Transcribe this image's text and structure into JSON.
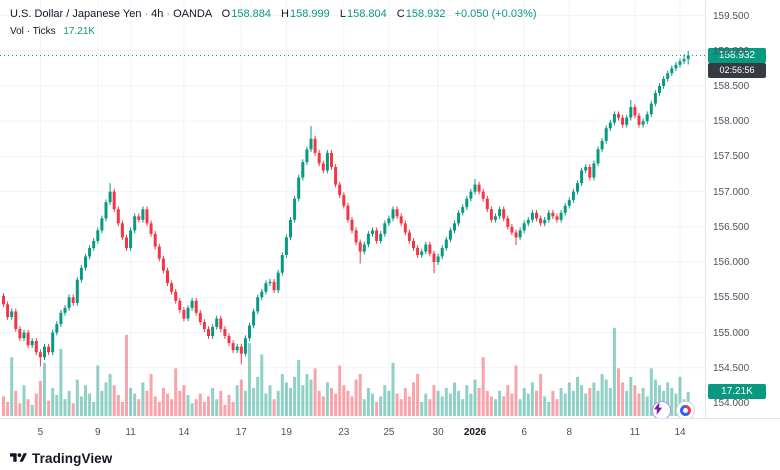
{
  "header": {
    "symbol": "U.S. Dollar / Japanese Yen",
    "sep": "·",
    "interval": "4h",
    "exchange": "OANDA",
    "ohlc": {
      "o_label": "O",
      "o_value": "158.884",
      "h_label": "H",
      "h_value": "158.999",
      "l_label": "L",
      "l_value": "158.804",
      "c_label": "C",
      "c_value": "158.932",
      "change": "+0.050 (+0.03%)"
    },
    "volume_row": {
      "label": "Vol · Ticks",
      "value": "17.21K"
    }
  },
  "price_axis": {
    "labels": [
      "159.500",
      "159.000",
      "158.500",
      "158.000",
      "157.500",
      "157.000",
      "156.500",
      "156.000",
      "155.500",
      "155.000",
      "154.500",
      "154.000"
    ]
  },
  "time_axis": {
    "labels": [
      {
        "text": "5",
        "index": 9
      },
      {
        "text": "9",
        "index": 23
      },
      {
        "text": "11",
        "index": 31
      },
      {
        "text": "14",
        "index": 44
      },
      {
        "text": "17",
        "index": 58
      },
      {
        "text": "19",
        "index": 69
      },
      {
        "text": "23",
        "index": 83
      },
      {
        "text": "25",
        "index": 94
      },
      {
        "text": "30",
        "index": 106
      },
      {
        "text": "2026",
        "index": 115,
        "year": true
      },
      {
        "text": "6",
        "index": 127
      },
      {
        "text": "8",
        "index": 138
      },
      {
        "text": "11",
        "index": 154
      },
      {
        "text": "14",
        "index": 165
      }
    ]
  },
  "badges": {
    "last_price": "158.932",
    "countdown": "02:56:56",
    "last_volume": "17.21K"
  },
  "footer": {
    "brand": "TradingView"
  },
  "icons": {
    "boost": "lightning-bolt",
    "secondary": "red-blue-gauge",
    "logo": "tradingview-logo"
  },
  "colors": {
    "up": "#089981",
    "down": "#f23645",
    "vol_up": "rgba(8,153,129,0.45)",
    "vol_down": "rgba(242,54,69,0.45)",
    "grid": "#f0f3fa",
    "axis_text": "#4c525e",
    "badge_price_bg": "#089981",
    "badge_countdown_bg": "#363a45"
  },
  "chart_data": {
    "type": "candlestick+volume",
    "symbol": "USD/JPY",
    "interval": "4h",
    "exchange": "OANDA",
    "title": "U.S. Dollar / Japanese Yen · 4h · OANDA",
    "price_range": [
      154.0,
      159.5
    ],
    "grid": true,
    "last": {
      "open": 158.884,
      "high": 158.999,
      "low": 158.804,
      "close": 158.932,
      "change": "+0.050 (+0.03%)",
      "volume_k": 17.21
    },
    "candles": [
      [
        155.52,
        155.56,
        155.36,
        155.4
      ],
      [
        155.4,
        155.44,
        155.18,
        155.22
      ],
      [
        155.22,
        155.34,
        155.18,
        155.3
      ],
      [
        155.3,
        155.34,
        155.01,
        155.05
      ],
      [
        155.05,
        155.09,
        154.88,
        154.92
      ],
      [
        154.92,
        155.04,
        154.88,
        155.0
      ],
      [
        155.0,
        155.04,
        154.78,
        154.82
      ],
      [
        154.82,
        154.92,
        154.78,
        154.88
      ],
      [
        154.88,
        154.92,
        154.68,
        154.72
      ],
      [
        154.72,
        154.76,
        154.52,
        154.65
      ],
      [
        154.65,
        154.84,
        154.61,
        154.8
      ],
      [
        154.8,
        154.84,
        154.68,
        154.72
      ],
      [
        154.72,
        155.04,
        154.68,
        155.0
      ],
      [
        155.0,
        155.16,
        154.96,
        155.12
      ],
      [
        155.12,
        155.32,
        155.08,
        155.28
      ],
      [
        155.28,
        155.39,
        155.24,
        155.35
      ],
      [
        155.35,
        155.54,
        155.31,
        155.5
      ],
      [
        155.5,
        155.54,
        155.38,
        155.42
      ],
      [
        155.42,
        155.79,
        155.38,
        155.75
      ],
      [
        155.75,
        155.96,
        155.71,
        155.92
      ],
      [
        155.92,
        156.12,
        155.88,
        156.08
      ],
      [
        156.08,
        156.24,
        156.04,
        156.2
      ],
      [
        156.2,
        156.34,
        156.16,
        156.3
      ],
      [
        156.3,
        156.49,
        156.26,
        156.45
      ],
      [
        156.45,
        156.66,
        156.41,
        156.62
      ],
      [
        156.62,
        156.89,
        156.58,
        156.85
      ],
      [
        156.85,
        157.12,
        156.81,
        157.0
      ],
      [
        157.0,
        157.04,
        156.71,
        156.75
      ],
      [
        156.75,
        156.79,
        156.51,
        156.55
      ],
      [
        156.55,
        156.59,
        156.31,
        156.35
      ],
      [
        156.35,
        156.39,
        156.16,
        156.2
      ],
      [
        156.2,
        156.49,
        156.16,
        156.45
      ],
      [
        156.45,
        156.69,
        156.41,
        156.65
      ],
      [
        156.65,
        156.69,
        156.56,
        156.6
      ],
      [
        156.6,
        156.79,
        156.56,
        156.75
      ],
      [
        156.75,
        156.79,
        156.51,
        156.55
      ],
      [
        156.55,
        156.59,
        156.36,
        156.4
      ],
      [
        156.4,
        156.44,
        156.18,
        156.22
      ],
      [
        156.22,
        156.26,
        156.01,
        156.05
      ],
      [
        156.05,
        156.09,
        155.84,
        155.88
      ],
      [
        155.88,
        155.92,
        155.66,
        155.7
      ],
      [
        155.7,
        155.74,
        155.54,
        155.58
      ],
      [
        155.58,
        155.62,
        155.41,
        155.45
      ],
      [
        155.45,
        155.49,
        155.28,
        155.32
      ],
      [
        155.32,
        155.36,
        155.16,
        155.2
      ],
      [
        155.2,
        155.39,
        155.16,
        155.35
      ],
      [
        155.35,
        155.49,
        155.31,
        155.45
      ],
      [
        155.45,
        155.49,
        155.24,
        155.28
      ],
      [
        155.28,
        155.32,
        155.11,
        155.15
      ],
      [
        155.15,
        155.19,
        155.01,
        155.05
      ],
      [
        155.05,
        155.09,
        154.91,
        154.95
      ],
      [
        154.95,
        155.12,
        154.91,
        155.08
      ],
      [
        155.08,
        155.24,
        155.04,
        155.2
      ],
      [
        155.2,
        155.24,
        155.01,
        155.05
      ],
      [
        155.05,
        155.09,
        154.91,
        154.95
      ],
      [
        154.95,
        154.99,
        154.81,
        154.85
      ],
      [
        154.85,
        154.89,
        154.71,
        154.75
      ],
      [
        154.75,
        154.84,
        154.71,
        154.8
      ],
      [
        154.8,
        154.84,
        154.55,
        154.7
      ],
      [
        154.7,
        154.96,
        154.66,
        154.92
      ],
      [
        154.92,
        155.14,
        154.88,
        155.1
      ],
      [
        155.1,
        155.34,
        155.06,
        155.3
      ],
      [
        155.3,
        155.54,
        155.26,
        155.5
      ],
      [
        155.5,
        155.62,
        155.46,
        155.58
      ],
      [
        155.58,
        155.74,
        155.54,
        155.7
      ],
      [
        155.7,
        155.76,
        155.66,
        155.72
      ],
      [
        155.72,
        155.76,
        155.56,
        155.6
      ],
      [
        155.6,
        155.89,
        155.56,
        155.85
      ],
      [
        155.85,
        156.14,
        155.81,
        156.1
      ],
      [
        156.1,
        156.39,
        156.06,
        156.35
      ],
      [
        156.35,
        156.64,
        156.31,
        156.6
      ],
      [
        156.6,
        156.94,
        156.56,
        156.9
      ],
      [
        156.9,
        157.24,
        156.86,
        157.2
      ],
      [
        157.2,
        157.46,
        157.16,
        157.42
      ],
      [
        157.42,
        157.64,
        157.38,
        157.6
      ],
      [
        157.6,
        157.93,
        157.56,
        157.75
      ],
      [
        157.75,
        157.79,
        157.51,
        157.55
      ],
      [
        157.55,
        157.59,
        157.36,
        157.4
      ],
      [
        157.4,
        157.44,
        157.26,
        157.3
      ],
      [
        157.3,
        157.59,
        157.26,
        157.55
      ],
      [
        157.55,
        157.59,
        157.31,
        157.35
      ],
      [
        157.35,
        157.39,
        157.06,
        157.1
      ],
      [
        157.1,
        157.14,
        156.91,
        156.95
      ],
      [
        156.95,
        156.99,
        156.76,
        156.8
      ],
      [
        156.8,
        156.84,
        156.56,
        156.6
      ],
      [
        156.6,
        156.64,
        156.41,
        156.45
      ],
      [
        156.45,
        156.49,
        156.24,
        156.28
      ],
      [
        156.28,
        156.32,
        155.98,
        156.15
      ],
      [
        156.15,
        156.29,
        156.11,
        156.25
      ],
      [
        156.25,
        156.44,
        156.21,
        156.4
      ],
      [
        156.4,
        156.49,
        156.36,
        156.45
      ],
      [
        156.45,
        156.49,
        156.26,
        156.3
      ],
      [
        156.3,
        156.44,
        156.26,
        156.4
      ],
      [
        156.4,
        156.59,
        156.36,
        156.55
      ],
      [
        156.55,
        156.66,
        156.51,
        156.62
      ],
      [
        156.62,
        156.79,
        156.58,
        156.75
      ],
      [
        156.75,
        156.79,
        156.61,
        156.65
      ],
      [
        156.65,
        156.69,
        156.51,
        156.55
      ],
      [
        156.55,
        156.59,
        156.38,
        156.42
      ],
      [
        156.42,
        156.46,
        156.26,
        156.3
      ],
      [
        156.3,
        156.34,
        156.16,
        156.2
      ],
      [
        156.2,
        156.24,
        156.06,
        156.1
      ],
      [
        156.1,
        156.19,
        156.06,
        156.15
      ],
      [
        156.15,
        156.29,
        156.11,
        156.25
      ],
      [
        156.25,
        156.29,
        156.08,
        156.12
      ],
      [
        156.12,
        156.16,
        155.84,
        156.0
      ],
      [
        156.0,
        156.12,
        155.96,
        156.08
      ],
      [
        156.08,
        156.24,
        156.04,
        156.2
      ],
      [
        156.2,
        156.36,
        156.16,
        156.32
      ],
      [
        156.32,
        156.49,
        156.28,
        156.45
      ],
      [
        156.45,
        156.59,
        156.41,
        156.55
      ],
      [
        156.55,
        156.74,
        156.51,
        156.7
      ],
      [
        156.7,
        156.82,
        156.66,
        156.78
      ],
      [
        156.78,
        156.94,
        156.74,
        156.9
      ],
      [
        156.9,
        157.04,
        156.86,
        157.0
      ],
      [
        157.0,
        157.18,
        156.96,
        157.1
      ],
      [
        157.1,
        157.14,
        156.96,
        157.0
      ],
      [
        157.0,
        157.04,
        156.86,
        156.9
      ],
      [
        156.9,
        156.94,
        156.71,
        156.75
      ],
      [
        156.75,
        156.79,
        156.56,
        156.6
      ],
      [
        156.6,
        156.69,
        156.56,
        156.65
      ],
      [
        156.65,
        156.79,
        156.61,
        156.75
      ],
      [
        156.75,
        156.79,
        156.58,
        156.62
      ],
      [
        156.62,
        156.66,
        156.46,
        156.5
      ],
      [
        156.5,
        156.54,
        156.38,
        156.42
      ],
      [
        156.42,
        156.46,
        156.24,
        156.35
      ],
      [
        156.35,
        156.49,
        156.31,
        156.45
      ],
      [
        156.45,
        156.59,
        156.41,
        156.55
      ],
      [
        156.55,
        156.64,
        156.51,
        156.6
      ],
      [
        156.6,
        156.74,
        156.56,
        156.7
      ],
      [
        156.7,
        156.74,
        156.58,
        156.62
      ],
      [
        156.62,
        156.66,
        156.51,
        156.55
      ],
      [
        156.55,
        156.64,
        156.51,
        156.6
      ],
      [
        156.6,
        156.74,
        156.56,
        156.7
      ],
      [
        156.7,
        156.74,
        156.61,
        156.65
      ],
      [
        156.65,
        156.69,
        156.56,
        156.6
      ],
      [
        156.6,
        156.74,
        156.56,
        156.7
      ],
      [
        156.7,
        156.84,
        156.66,
        156.8
      ],
      [
        156.8,
        156.92,
        156.76,
        156.88
      ],
      [
        156.88,
        157.04,
        156.84,
        157.0
      ],
      [
        157.0,
        157.16,
        156.96,
        157.12
      ],
      [
        157.12,
        157.34,
        157.08,
        157.3
      ],
      [
        157.3,
        157.39,
        157.26,
        157.35
      ],
      [
        157.35,
        157.39,
        157.16,
        157.2
      ],
      [
        157.2,
        157.44,
        157.16,
        157.4
      ],
      [
        157.4,
        157.64,
        157.36,
        157.6
      ],
      [
        157.6,
        157.76,
        157.56,
        157.72
      ],
      [
        157.72,
        157.94,
        157.68,
        157.9
      ],
      [
        157.9,
        158.02,
        157.86,
        157.98
      ],
      [
        157.98,
        158.14,
        157.94,
        158.1
      ],
      [
        158.1,
        158.14,
        158.01,
        158.05
      ],
      [
        158.05,
        158.09,
        157.91,
        157.95
      ],
      [
        157.95,
        158.09,
        157.91,
        158.05
      ],
      [
        158.05,
        158.3,
        158.01,
        158.2
      ],
      [
        158.2,
        158.24,
        158.04,
        158.08
      ],
      [
        158.08,
        158.12,
        157.91,
        157.95
      ],
      [
        157.95,
        158.04,
        157.91,
        158.0
      ],
      [
        158.0,
        158.14,
        157.96,
        158.1
      ],
      [
        158.1,
        158.29,
        158.06,
        158.25
      ],
      [
        158.25,
        158.44,
        158.21,
        158.4
      ],
      [
        158.4,
        158.54,
        158.36,
        158.5
      ],
      [
        158.5,
        158.64,
        158.46,
        158.6
      ],
      [
        158.6,
        158.72,
        158.56,
        158.68
      ],
      [
        158.68,
        158.79,
        158.64,
        158.75
      ],
      [
        158.75,
        158.84,
        158.71,
        158.8
      ],
      [
        158.8,
        158.89,
        158.76,
        158.85
      ],
      [
        158.85,
        158.95,
        158.81,
        158.88
      ],
      [
        158.884,
        158.999,
        158.804,
        158.932
      ]
    ],
    "volumes_k": [
      14,
      10,
      42,
      18,
      9,
      22,
      12,
      8,
      16,
      25,
      38,
      11,
      20,
      15,
      48,
      12,
      18,
      9,
      26,
      14,
      22,
      16,
      10,
      36,
      18,
      24,
      30,
      22,
      15,
      10,
      58,
      20,
      16,
      12,
      24,
      18,
      30,
      14,
      10,
      20,
      16,
      12,
      34,
      18,
      22,
      15,
      9,
      12,
      16,
      10,
      14,
      20,
      12,
      18,
      8,
      15,
      10,
      22,
      26,
      18,
      52,
      20,
      28,
      44,
      16,
      22,
      12,
      18,
      30,
      24,
      20,
      28,
      40,
      22,
      30,
      26,
      34,
      18,
      14,
      24,
      20,
      16,
      36,
      22,
      18,
      14,
      26,
      30,
      12,
      20,
      16,
      10,
      14,
      22,
      18,
      38,
      16,
      12,
      20,
      14,
      24,
      30,
      10,
      16,
      12,
      22,
      18,
      14,
      20,
      16,
      24,
      18,
      12,
      22,
      16,
      26,
      20,
      42,
      18,
      14,
      12,
      18,
      14,
      22,
      16,
      36,
      12,
      20,
      16,
      24,
      18,
      30,
      14,
      10,
      18,
      12,
      20,
      16,
      24,
      18,
      28,
      22,
      16,
      20,
      24,
      18,
      30,
      26,
      20,
      63,
      34,
      24,
      18,
      28,
      22,
      16,
      20,
      14,
      34,
      26,
      22,
      18,
      24,
      20,
      16,
      28,
      12,
      17.21
    ]
  }
}
